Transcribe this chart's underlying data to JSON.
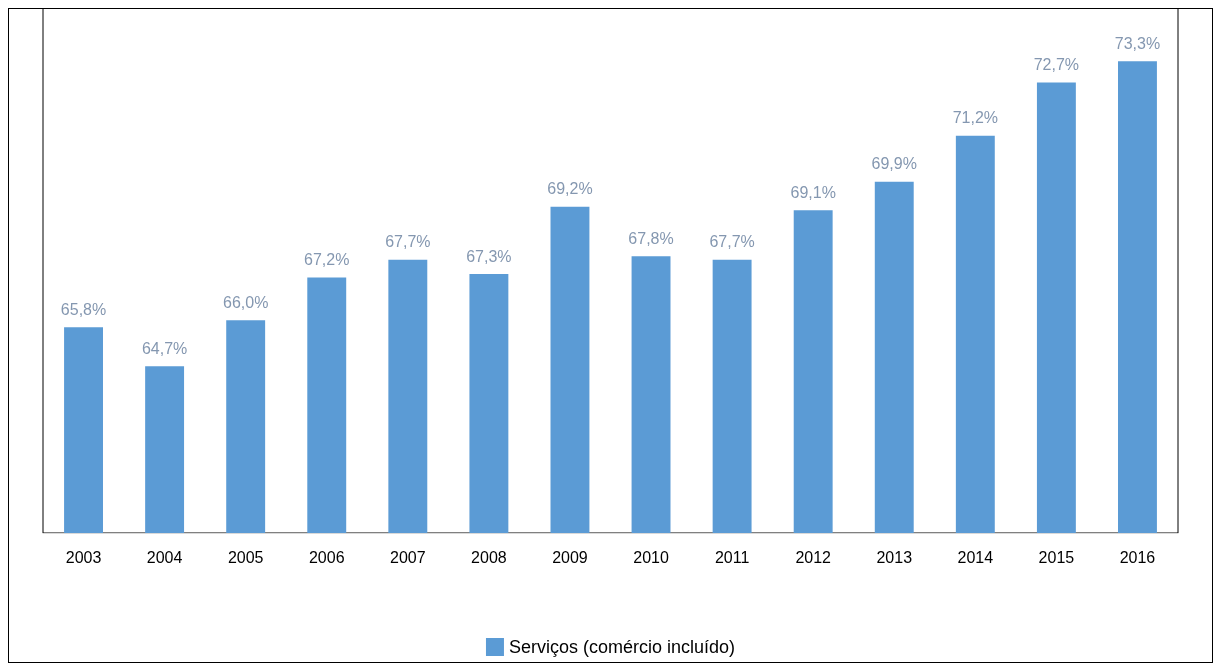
{
  "chart_data": {
    "type": "bar",
    "categories": [
      "2003",
      "2004",
      "2005",
      "2006",
      "2007",
      "2008",
      "2009",
      "2010",
      "2011",
      "2012",
      "2013",
      "2014",
      "2015",
      "2016"
    ],
    "series": [
      {
        "name": "Serviços (comércio incluído)",
        "color": "#5b9bd5",
        "values": [
          65.8,
          64.7,
          66.0,
          67.2,
          67.7,
          67.3,
          69.2,
          67.8,
          67.7,
          69.1,
          69.9,
          71.2,
          72.7,
          73.3
        ],
        "value_labels": [
          "65,8%",
          "64,7%",
          "66,0%",
          "67,2%",
          "67,7%",
          "67,3%",
          "69,2%",
          "67,8%",
          "67,7%",
          "69,1%",
          "69,9%",
          "71,2%",
          "72,7%",
          "73,3%"
        ]
      }
    ],
    "ylim": [
      60,
      74.8
    ],
    "tick_labels": "x",
    "legend": "bottom"
  }
}
